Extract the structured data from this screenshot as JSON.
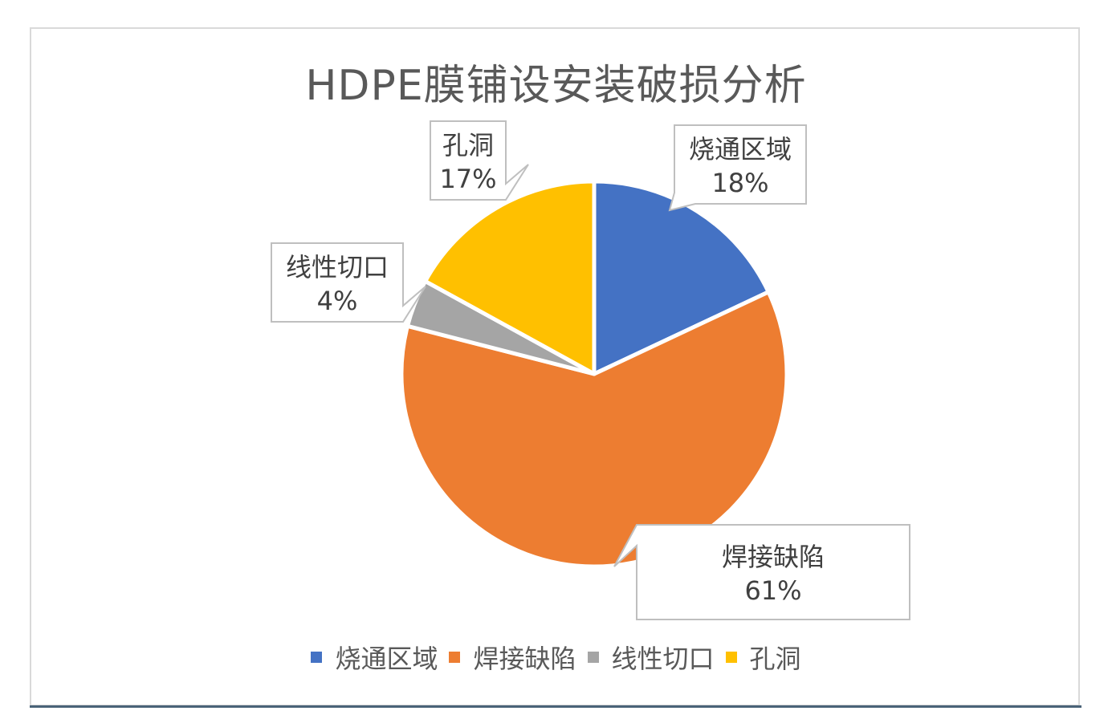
{
  "chart_data": {
    "type": "pie",
    "title": "HDPE膜铺设安装破损分析",
    "slices": [
      {
        "name": "烧通区域",
        "value": 18,
        "label": "18%",
        "color": "#4472c4"
      },
      {
        "name": "焊接缺陷",
        "value": 61,
        "label": "61%",
        "color": "#ed7d31"
      },
      {
        "name": "线性切口",
        "value": 4,
        "label": "4%",
        "color": "#a5a5a5"
      },
      {
        "name": "孔洞",
        "value": 17,
        "label": "17%",
        "color": "#ffc000"
      }
    ],
    "legend_position": "bottom",
    "data_labels": "callout"
  }
}
